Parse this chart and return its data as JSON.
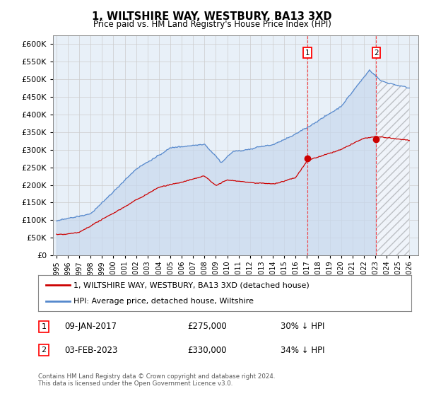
{
  "title": "1, WILTSHIRE WAY, WESTBURY, BA13 3XD",
  "subtitle": "Price paid vs. HM Land Registry's House Price Index (HPI)",
  "background_color": "#ffffff",
  "chart_bg_color": "#e8f0f8",
  "hpi_color": "#5588cc",
  "hpi_fill_color": "#c8d8ee",
  "price_color": "#cc0000",
  "sale1_date": "09-JAN-2017",
  "sale1_price": 275000,
  "sale1_x": 2017.04,
  "sale1_label": "30% ↓ HPI",
  "sale2_date": "03-FEB-2023",
  "sale2_price": 330000,
  "sale2_x": 2023.09,
  "sale2_label": "34% ↓ HPI",
  "legend_label1": "1, WILTSHIRE WAY, WESTBURY, BA13 3XD (detached house)",
  "legend_label2": "HPI: Average price, detached house, Wiltshire",
  "footer1": "Contains HM Land Registry data © Crown copyright and database right 2024.",
  "footer2": "This data is licensed under the Open Government Licence v3.0.",
  "xmin": 1995,
  "xmax": 2026,
  "ymin": 0,
  "ymax": 600000,
  "future_start": 2023.09,
  "yticks": [
    0,
    50000,
    100000,
    150000,
    200000,
    250000,
    300000,
    350000,
    400000,
    450000,
    500000,
    550000,
    600000
  ]
}
